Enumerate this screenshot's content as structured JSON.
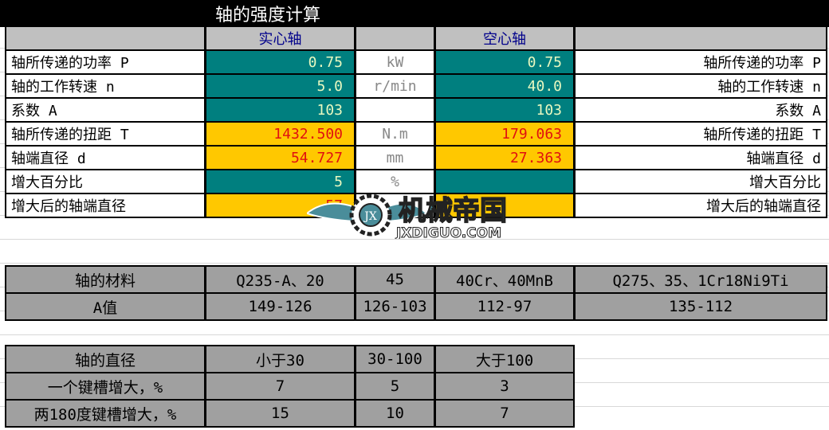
{
  "title": "轴的强度计算",
  "headers": {
    "solid": "实心轴",
    "hollow": "空心轴"
  },
  "rows": [
    {
      "label": "轴所传递的功率 P",
      "solid": "0.75",
      "unit": "kW",
      "hollow": "0.75",
      "rlabel": "轴所传递的功率 P",
      "solid_style": "teal",
      "hollow_style": "teal"
    },
    {
      "label": "轴的工作转速 n",
      "solid": "5.0",
      "unit": "r/min",
      "hollow": "40.0",
      "rlabel": "轴的工作转速 n",
      "solid_style": "teal",
      "hollow_style": "teal"
    },
    {
      "label": "系数 A",
      "solid": "103",
      "unit": "",
      "hollow": "103",
      "rlabel": "系数 A",
      "solid_style": "teal",
      "hollow_style": "teal"
    },
    {
      "label": "轴所传递的扭距 T",
      "solid": "1432.500",
      "unit": "N.m",
      "hollow": "179.063",
      "rlabel": "轴所传递的扭距 T",
      "solid_style": "yellow",
      "hollow_style": "yellow"
    },
    {
      "label": "轴端直径 d",
      "solid": "54.727",
      "unit": "mm",
      "hollow": "27.363",
      "rlabel": "轴端直径 d",
      "solid_style": "yellow",
      "hollow_style": "yellow"
    },
    {
      "label": "增大百分比",
      "solid": "5",
      "unit": "%",
      "hollow": "",
      "rlabel": "增大百分比",
      "solid_style": "teal",
      "hollow_style": "teal"
    },
    {
      "label": "增大后的轴端直径",
      "solid": "57",
      "unit": "",
      "hollow": "",
      "rlabel": "增大后的轴端直径",
      "solid_style": "yellow",
      "hollow_style": "yellow"
    }
  ],
  "materials": {
    "rows": [
      [
        "轴的材料",
        "Q235-A、20",
        "45",
        "40Cr、40MnB",
        "Q275、35、1Cr18Ni9Ti"
      ],
      [
        "A值",
        "149-126",
        "126-103",
        "112-97",
        "135-112"
      ]
    ]
  },
  "keyway": {
    "rows": [
      [
        "轴的直径",
        "小于30",
        "30-100",
        "大于100"
      ],
      [
        "一个键槽增大，%",
        "7",
        "5",
        "3"
      ],
      [
        "两180度键槽增大，%",
        "15",
        "10",
        "7"
      ]
    ]
  },
  "logo": {
    "text": "机械帝国",
    "sub": "JXDIGUO.COM",
    "badge": "JX"
  },
  "colors": {
    "teal": "#007f7f",
    "yellow": "#ffc800",
    "red": "#e01010",
    "gray": "#a0a0a0"
  }
}
